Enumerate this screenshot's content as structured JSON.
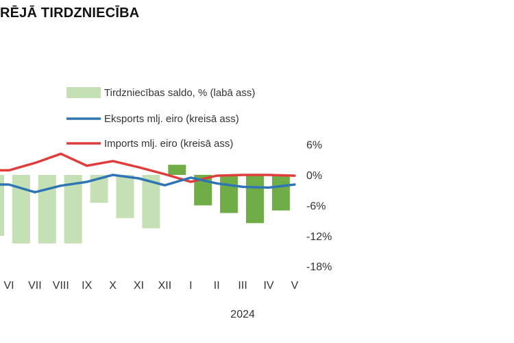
{
  "chart_data": {
    "type": "bar+line",
    "title": "RĒJĀ TIRDZNIECĪBA",
    "categories": [
      "VI",
      "VII",
      "VIII",
      "IX",
      "X",
      "XI",
      "XII",
      "I",
      "II",
      "III",
      "IV",
      "V"
    ],
    "year_label": "2024",
    "y_right": {
      "ticks": [
        "6%",
        "0%",
        "-6%",
        "-12%",
        "-18%"
      ],
      "tick_values": [
        6,
        0,
        -6,
        -12,
        -18
      ],
      "range": [
        -18,
        6
      ]
    },
    "series": [
      {
        "name": "Tirdzniecības saldo, % (labā ass)",
        "type": "bar",
        "axis": "right",
        "values": [
          -12,
          -13.5,
          -13.5,
          -13.5,
          -5.5,
          -8.5,
          -10.5,
          2,
          -6,
          -7.5,
          -9.5,
          -7
        ],
        "color_2023": "#c5e0b4",
        "color_2024": "#70ad47"
      },
      {
        "name": "Eksports mlj. eiro (kreisā ass)",
        "type": "line",
        "axis": "left",
        "values": [
          -2.5,
          -4.5,
          -2.8,
          -1.8,
          0,
          -0.9,
          -2.7,
          -0.7,
          -2.2,
          -3.1,
          -3.3,
          -2.5
        ],
        "color": "#2e75b6"
      },
      {
        "name": "Imports mlj. eiro (kreisā ass)",
        "type": "line",
        "axis": "left",
        "values": [
          1.2,
          3.1,
          5.5,
          2.4,
          3.6,
          2.0,
          0.2,
          -1.8,
          -0.2,
          0.0,
          0.0,
          -0.2
        ],
        "color": "#e03c3c"
      }
    ],
    "legend": "top-center",
    "grid": false
  }
}
